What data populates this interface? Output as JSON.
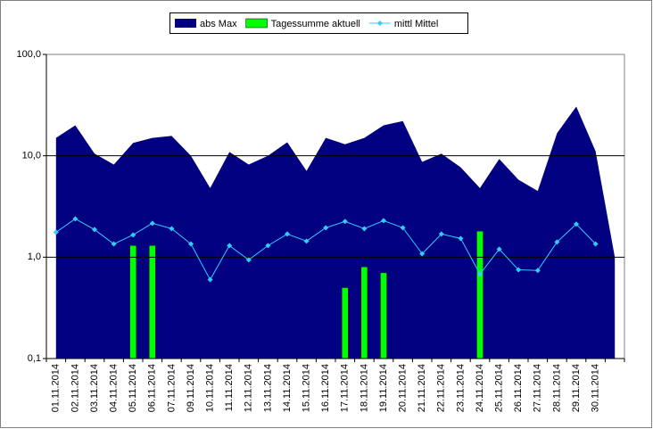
{
  "chart_data": {
    "type": "combo",
    "log_y": true,
    "grid": true,
    "legend": "top",
    "categories": [
      "01.11.2014",
      "02.11.2014",
      "03.11.2014",
      "04.11.2014",
      "05.11.2014",
      "06.11.2014",
      "07.11.2014",
      "09.11.2014",
      "10.11.2014",
      "11.11.2014",
      "12.11.2014",
      "13.11.2014",
      "14.11.2014",
      "15.11.2014",
      "16.11.2014",
      "17.11.2014",
      "18.11.2014",
      "19.11.2014",
      "20.11.2014",
      "21.11.2014",
      "22.11.2014",
      "23.11.2014",
      "24.11.2014",
      "25.11.2014",
      "26.11.2014",
      "27.11.2014",
      "28.11.2014",
      "29.11.2014",
      "30.11.2014",
      null
    ],
    "ylim": [
      0.1,
      100
    ],
    "yticks": [
      {
        "value": 0.1,
        "label": "0,1"
      },
      {
        "value": 1,
        "label": "1,0"
      },
      {
        "value": 10,
        "label": "10,0"
      },
      {
        "value": 100,
        "label": "100,0"
      }
    ],
    "series": [
      {
        "name": "abs Max",
        "type": "area",
        "color": "#000080",
        "values": [
          15,
          20,
          10.5,
          8.2,
          13.4,
          15,
          15.7,
          10,
          4.8,
          10.9,
          8.2,
          10,
          13.6,
          7.1,
          15,
          13,
          15,
          20,
          22,
          8.7,
          10.5,
          7.7,
          4.8,
          9.3,
          5.8,
          4.5,
          16.7,
          30.6,
          11.1,
          1.0
        ]
      },
      {
        "name": "Tagessumme aktuell",
        "type": "bar",
        "color": "#00ff00",
        "values": [
          null,
          null,
          null,
          null,
          1.3,
          1.3,
          null,
          null,
          null,
          null,
          null,
          null,
          null,
          null,
          null,
          0.5,
          0.8,
          0.7,
          null,
          null,
          null,
          null,
          1.8,
          null,
          null,
          null,
          null,
          null,
          null,
          null
        ]
      },
      {
        "name": "mittl Mittel",
        "type": "line",
        "color": "#33ccff",
        "values": [
          1.76,
          2.39,
          1.87,
          1.35,
          1.66,
          2.16,
          1.91,
          1.35,
          0.6,
          1.3,
          0.94,
          1.3,
          1.69,
          1.44,
          1.95,
          2.25,
          1.91,
          2.29,
          1.95,
          1.08,
          1.69,
          1.53,
          0.68,
          1.2,
          0.75,
          0.74,
          1.41,
          2.12,
          1.35,
          null
        ]
      }
    ]
  }
}
